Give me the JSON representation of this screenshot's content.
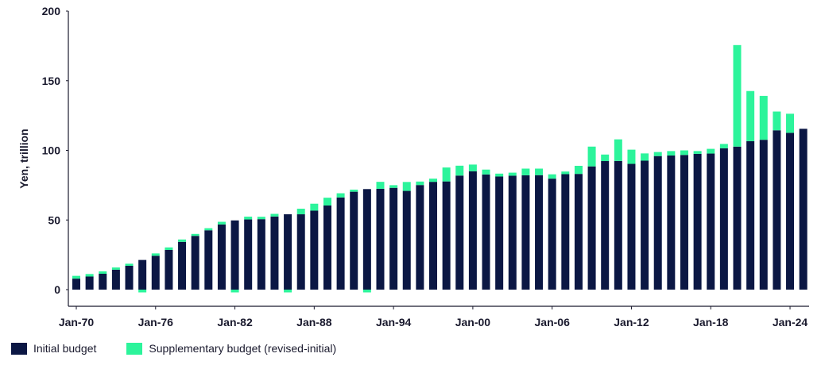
{
  "colors": {
    "initial": "#0b1744",
    "supplementary": "#2cf49b",
    "axis": "#1a1a2e"
  },
  "chart_data": {
    "type": "bar",
    "stacked": true,
    "title": "",
    "xlabel": "",
    "ylabel": "Yen, trillion",
    "ylim": [
      0,
      200
    ],
    "yticks": [
      0,
      50,
      100,
      150,
      200
    ],
    "xtick_labels": [
      "Jan-70",
      "Jan-76",
      "Jan-82",
      "Jan-88",
      "Jan-94",
      "Jan-00",
      "Jan-06",
      "Jan-12",
      "Jan-18",
      "Jan-24"
    ],
    "xtick_years": [
      1970,
      1976,
      1982,
      1988,
      1994,
      2000,
      2006,
      2012,
      2018,
      2024
    ],
    "categories": [
      1970,
      1971,
      1972,
      1973,
      1974,
      1975,
      1976,
      1977,
      1978,
      1979,
      1980,
      1981,
      1982,
      1983,
      1984,
      1985,
      1986,
      1987,
      1988,
      1989,
      1990,
      1991,
      1992,
      1993,
      1994,
      1995,
      1996,
      1997,
      1998,
      1999,
      2000,
      2001,
      2002,
      2003,
      2004,
      2005,
      2006,
      2007,
      2008,
      2009,
      2010,
      2011,
      2012,
      2013,
      2014,
      2015,
      2016,
      2017,
      2018,
      2019,
      2020,
      2021,
      2022,
      2023,
      2024,
      2025
    ],
    "series": [
      {
        "name": "Initial budget",
        "values": [
          7.9,
          9.4,
          11.4,
          14.3,
          17.1,
          21.3,
          24.3,
          28.5,
          34.3,
          38.6,
          42.6,
          46.8,
          49.7,
          50.4,
          50.6,
          52.5,
          54.1,
          54.1,
          56.7,
          60.4,
          66.2,
          70.3,
          72.2,
          72.4,
          73.1,
          70.9,
          75.1,
          77.4,
          77.7,
          81.9,
          85.0,
          82.7,
          81.2,
          81.8,
          82.1,
          82.2,
          79.7,
          82.9,
          83.1,
          88.5,
          92.3,
          92.4,
          90.3,
          92.6,
          95.9,
          96.3,
          96.7,
          97.5,
          97.7,
          101.5,
          102.7,
          106.6,
          107.6,
          114.4,
          112.6,
          115.5
        ]
      },
      {
        "name": "Supplementary budget (revised-initial)",
        "values": [
          2.0,
          1.8,
          1.7,
          1.6,
          1.5,
          -2.0,
          1.7,
          1.8,
          1.7,
          1.4,
          1.5,
          1.9,
          -2.0,
          2.0,
          1.7,
          1.9,
          -2.0,
          4.0,
          5.0,
          5.6,
          3.0,
          1.5,
          -2.0,
          5.0,
          1.9,
          6.4,
          2.5,
          2.3,
          10.0,
          7.1,
          4.8,
          3.5,
          2.1,
          2.2,
          4.8,
          4.7,
          3.1,
          1.9,
          5.8,
          14.2,
          4.7,
          15.5,
          10.2,
          5.2,
          2.9,
          3.2,
          3.3,
          2.0,
          3.4,
          3.1,
          72.9,
          36.0,
          31.5,
          13.5,
          13.7,
          0
        ]
      }
    ]
  },
  "legend": {
    "initial_label": "Initial budget",
    "supplementary_label": "Supplementary budget (revised-initial)"
  }
}
